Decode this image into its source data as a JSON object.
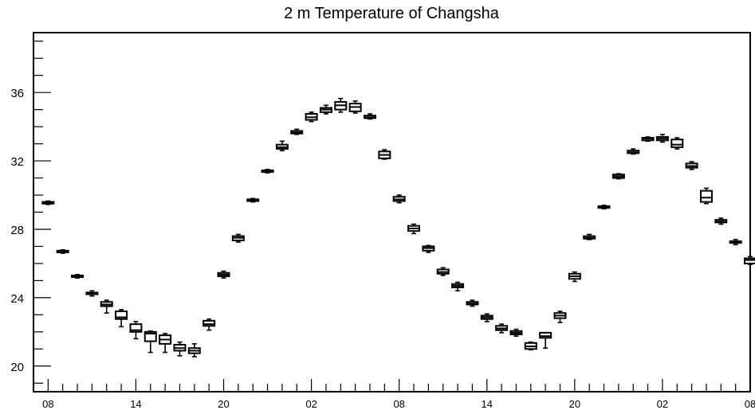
{
  "chart_data": {
    "type": "boxplot",
    "title": "2 m Temperature of Changsha",
    "xlabel": "",
    "ylabel": "",
    "ylim": [
      18.5,
      39.5
    ],
    "y_major_ticks": [
      20,
      24,
      28,
      32,
      36
    ],
    "y_minor_step": 1,
    "x_tick_labels": [
      "08",
      "14",
      "20",
      "02",
      "08",
      "14",
      "20",
      "02",
      "08"
    ],
    "x_tick_positions_hours": [
      0,
      6,
      12,
      18,
      24,
      30,
      36,
      42,
      48
    ],
    "xlim_hours": [
      -1,
      48
    ],
    "grid": false,
    "legend": "none",
    "series": [
      {
        "time_hours": [
          0,
          1,
          2,
          3,
          4,
          5,
          6,
          7,
          8,
          9,
          10,
          11,
          12,
          13,
          14,
          15,
          16,
          17,
          18,
          19,
          20,
          21,
          22,
          23,
          24,
          25,
          26,
          27,
          28,
          29,
          30,
          31,
          32,
          33,
          34,
          35,
          36,
          37,
          38,
          39,
          40,
          41,
          42,
          43,
          44,
          45,
          46,
          47,
          48
        ],
        "q1": [
          29.5,
          26.65,
          25.2,
          24.2,
          23.5,
          22.75,
          22.0,
          21.45,
          21.3,
          20.9,
          20.75,
          22.35,
          25.25,
          27.35,
          29.65,
          31.35,
          32.7,
          33.6,
          34.4,
          34.85,
          35.0,
          34.9,
          34.5,
          32.15,
          29.65,
          27.9,
          26.75,
          25.4,
          24.6,
          23.6,
          22.75,
          22.1,
          21.85,
          21.0,
          21.65,
          22.8,
          25.1,
          27.45,
          29.25,
          31.0,
          32.45,
          33.2,
          33.2,
          32.8,
          31.6,
          29.6,
          28.4,
          27.2,
          26.0
        ],
        "median": [
          29.55,
          26.7,
          25.25,
          24.25,
          23.6,
          22.85,
          22.1,
          21.9,
          21.55,
          21.05,
          20.9,
          22.45,
          25.35,
          27.5,
          29.7,
          31.4,
          32.8,
          33.65,
          34.55,
          35.0,
          35.25,
          35.15,
          34.55,
          32.35,
          29.75,
          28.05,
          26.9,
          25.5,
          24.7,
          23.65,
          22.85,
          22.2,
          21.95,
          21.15,
          21.75,
          22.95,
          25.25,
          27.5,
          29.3,
          31.1,
          32.5,
          33.3,
          33.3,
          32.95,
          31.7,
          29.85,
          28.45,
          27.25,
          26.2
        ],
        "q3": [
          29.6,
          26.75,
          25.3,
          24.3,
          23.75,
          23.2,
          22.45,
          22.0,
          21.8,
          21.25,
          21.05,
          22.65,
          25.45,
          27.6,
          29.75,
          31.45,
          32.95,
          33.75,
          34.75,
          35.1,
          35.45,
          35.35,
          34.65,
          32.55,
          29.9,
          28.2,
          27.0,
          25.65,
          24.8,
          23.75,
          22.95,
          22.35,
          22.05,
          21.35,
          21.95,
          23.1,
          25.4,
          27.6,
          29.35,
          31.2,
          32.6,
          33.35,
          33.4,
          33.25,
          31.85,
          30.25,
          28.55,
          27.3,
          26.3
        ],
        "whisker_low": [
          29.45,
          26.6,
          25.15,
          24.1,
          23.1,
          22.3,
          21.6,
          20.8,
          20.8,
          20.6,
          20.55,
          22.1,
          25.15,
          27.25,
          29.6,
          31.3,
          32.6,
          33.55,
          34.3,
          34.75,
          34.85,
          34.8,
          34.45,
          32.1,
          29.55,
          27.75,
          26.65,
          25.3,
          24.4,
          23.5,
          22.6,
          21.95,
          21.75,
          20.95,
          21.05,
          22.55,
          24.95,
          27.4,
          29.2,
          30.95,
          32.4,
          33.15,
          33.1,
          32.7,
          31.5,
          29.5,
          28.3,
          27.1,
          25.95
        ],
        "whisker_high": [
          29.65,
          26.8,
          25.35,
          24.4,
          23.85,
          23.3,
          22.6,
          22.05,
          21.9,
          21.4,
          21.3,
          22.75,
          25.55,
          27.7,
          29.8,
          31.5,
          33.15,
          33.85,
          34.85,
          35.25,
          35.65,
          35.5,
          34.75,
          32.65,
          30.0,
          28.3,
          27.05,
          25.75,
          24.9,
          23.85,
          23.05,
          22.45,
          22.15,
          21.4,
          21.9,
          23.2,
          25.5,
          27.7,
          29.4,
          31.25,
          32.7,
          33.4,
          33.55,
          33.35,
          31.95,
          30.4,
          28.65,
          27.4,
          26.4
        ]
      }
    ]
  }
}
